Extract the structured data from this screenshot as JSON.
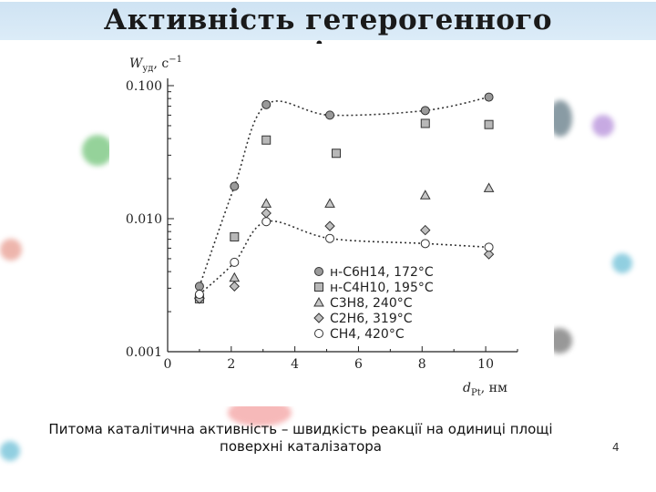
{
  "slide": {
    "title": "Активність гетерогенного каталізатора",
    "caption": "Питома каталітична активність – швидкість реакції на одиниці площі поверхні каталізатора",
    "page_number": "4"
  },
  "colors": {
    "title_band": "#d6e8f6",
    "marker_fill_gray": "#9a9a9a",
    "marker_fill_light": "#c8c8c8",
    "line": "#333333"
  },
  "chart_data": {
    "type": "scatter",
    "x_label": "d_Pt, нм",
    "y_label": "W_уд, с^-1",
    "xlim": [
      0,
      11
    ],
    "ylim": [
      0.001,
      0.1
    ],
    "y_scale": "log",
    "x_ticks": [
      "0",
      "2",
      "4",
      "6",
      "8",
      "10"
    ],
    "y_ticks": [
      "0.001",
      "0.010",
      "0.100"
    ],
    "grid": false,
    "legend_position": "bottom-right",
    "series": [
      {
        "name": "н-C6H14, 172°C",
        "marker": "circle-filled",
        "points": [
          [
            1,
            0.0031
          ],
          [
            2.1,
            0.0175
          ],
          [
            3.1,
            0.072
          ],
          [
            5.1,
            0.06
          ],
          [
            8.1,
            0.065
          ],
          [
            10.1,
            0.082
          ]
        ],
        "fit_line": true
      },
      {
        "name": "н-C4H10, 195°C",
        "marker": "square",
        "points": [
          [
            1,
            0.0025
          ],
          [
            2.1,
            0.0073
          ],
          [
            3.1,
            0.039
          ],
          [
            5.3,
            0.031
          ],
          [
            8.1,
            0.052
          ],
          [
            10.1,
            0.051
          ]
        ],
        "fit_line": false
      },
      {
        "name": "C3H8, 240°C",
        "marker": "triangle",
        "points": [
          [
            1,
            0.0027
          ],
          [
            2.1,
            0.0036
          ],
          [
            3.1,
            0.013
          ],
          [
            5.1,
            0.013
          ],
          [
            8.1,
            0.015
          ],
          [
            10.1,
            0.017
          ]
        ],
        "fit_line": false
      },
      {
        "name": "C2H6, 319°C",
        "marker": "diamond",
        "points": [
          [
            1,
            0.0025
          ],
          [
            2.1,
            0.0031
          ],
          [
            3.1,
            0.011
          ],
          [
            5.1,
            0.0088
          ],
          [
            8.1,
            0.0082
          ],
          [
            10.1,
            0.0054
          ]
        ],
        "fit_line": false
      },
      {
        "name": "CH4, 420°C",
        "marker": "circle-open",
        "points": [
          [
            1,
            0.0027
          ],
          [
            2.1,
            0.0047
          ],
          [
            3.1,
            0.0095
          ],
          [
            5.1,
            0.0071
          ],
          [
            8.1,
            0.0065
          ],
          [
            10.1,
            0.0061
          ]
        ],
        "fit_line": true
      }
    ]
  }
}
